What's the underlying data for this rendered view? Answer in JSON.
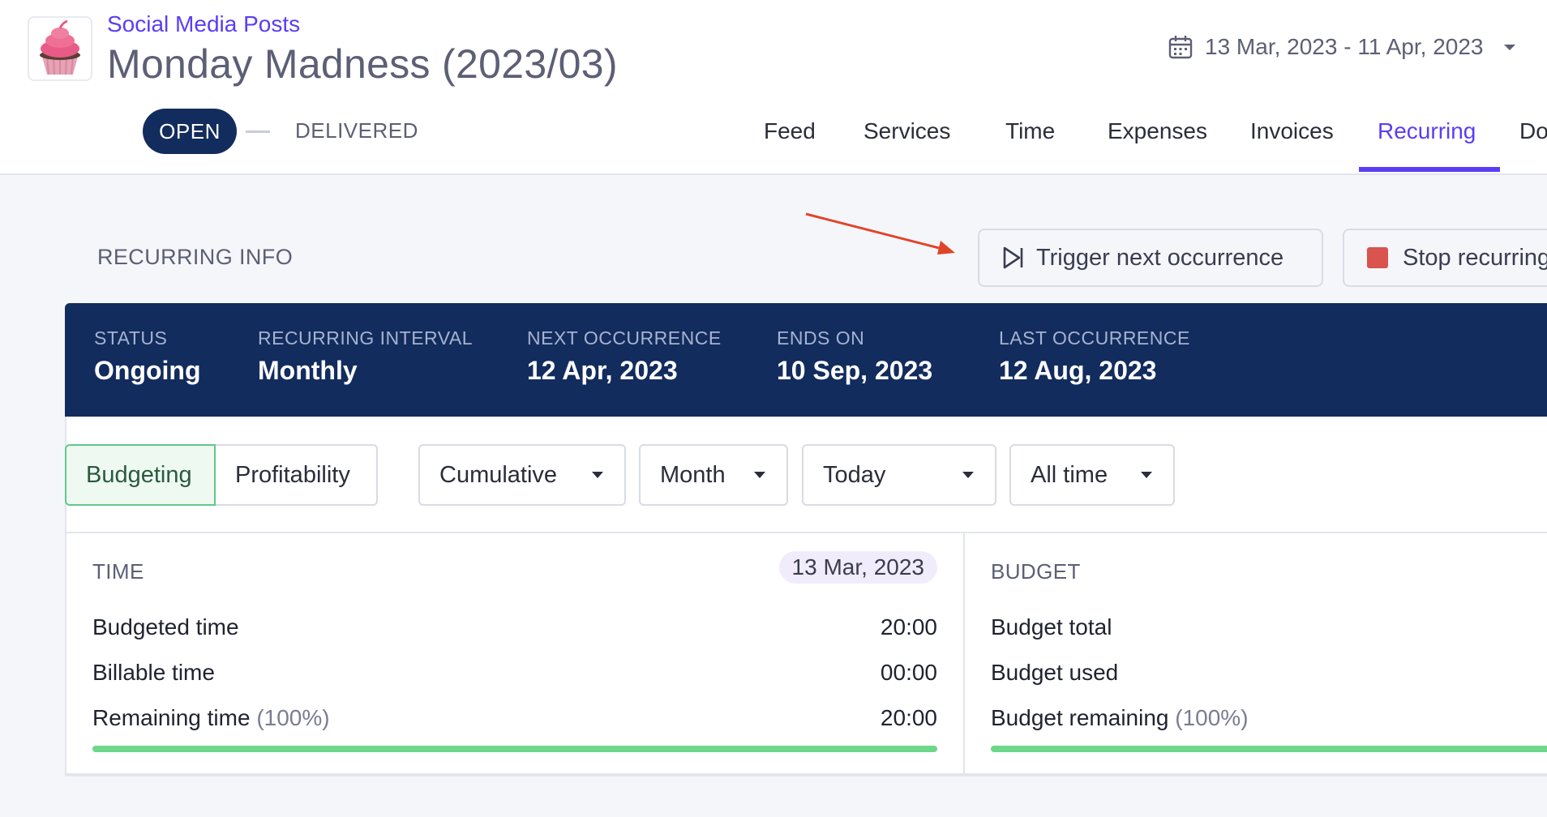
{
  "header": {
    "breadcrumb": "Social Media Posts",
    "title": "Monday Madness (2023/03)",
    "date_range": "13 Mar, 2023 - 11 Apr, 2023",
    "status_current": "OPEN",
    "status_next": "DELIVERED"
  },
  "tabs": [
    {
      "label": "Feed"
    },
    {
      "label": "Services"
    },
    {
      "label": "Time"
    },
    {
      "label": "Expenses"
    },
    {
      "label": "Invoices"
    },
    {
      "label": "Recurring",
      "active": true
    },
    {
      "label": "Do"
    }
  ],
  "recurring": {
    "section_title": "RECURRING INFO",
    "trigger_label": "Trigger next occurrence",
    "stop_label": "Stop recurring",
    "info": [
      {
        "label": "STATUS",
        "value": "Ongoing"
      },
      {
        "label": "RECURRING INTERVAL",
        "value": "Monthly"
      },
      {
        "label": "NEXT OCCURRENCE",
        "value": "12 Apr, 2023"
      },
      {
        "label": "ENDS ON",
        "value": "10 Sep, 2023"
      },
      {
        "label": "LAST OCCURRENCE",
        "value": "12 Aug, 2023"
      }
    ]
  },
  "filters": {
    "view_options": [
      "Budgeting",
      "Profitability"
    ],
    "view_selected": "Budgeting",
    "mode": "Cumulative",
    "period": "Month",
    "reference": "Today",
    "range": "All time"
  },
  "time_panel": {
    "title": "TIME",
    "date_chip": "13 Mar, 2023",
    "rows": [
      {
        "label": "Budgeted time",
        "value": "20:00"
      },
      {
        "label": "Billable time",
        "value": "00:00"
      },
      {
        "label": "Remaining time",
        "pct": "(100%)",
        "value": "20:00"
      }
    ],
    "progress": 1.0
  },
  "budget_panel": {
    "title": "BUDGET",
    "rows": [
      {
        "label": "Budget total",
        "value": ""
      },
      {
        "label": "Budget used",
        "value": ""
      },
      {
        "label": "Budget remaining",
        "pct": "(100%)",
        "value": ""
      }
    ],
    "progress": 1.0
  },
  "colors": {
    "accent": "#5b3df5",
    "navy": "#132c5e",
    "progress": "#6dd78a",
    "stop": "#d9534f",
    "annotation_arrow": "#e0442a"
  }
}
